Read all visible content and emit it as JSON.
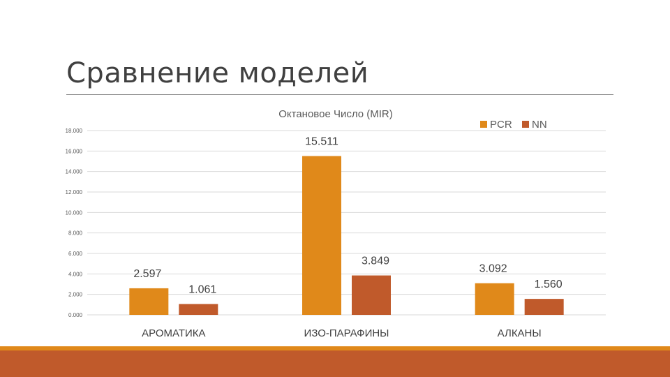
{
  "slide": {
    "title": "Сравнение моделей"
  },
  "colors": {
    "PCR": "#e0891a",
    "NN": "#c05a2b",
    "band_thin": "#e0891a",
    "band_thick": "#c05a2b"
  },
  "chart_data": {
    "type": "bar",
    "title": "Октановое Число (MIR)",
    "xlabel": "",
    "ylabel": "",
    "categories": [
      "АРОМАТИКА",
      "ИЗО-ПАРАФИНЫ",
      "АЛКАНЫ"
    ],
    "series": [
      {
        "name": "PCR",
        "values": [
          2.597,
          15.511,
          3.092
        ],
        "labels": [
          "2.597",
          "15.511",
          "3.092"
        ]
      },
      {
        "name": "NN",
        "values": [
          1.061,
          3.849,
          1.56
        ],
        "labels": [
          "1.061",
          "3.849",
          "1.560"
        ]
      }
    ],
    "ylim": [
      0,
      18
    ],
    "yticks": [
      0,
      2,
      4,
      6,
      8,
      10,
      12,
      14,
      16,
      18
    ],
    "ytick_labels": [
      "0.000",
      "2.000",
      "4.000",
      "6.000",
      "8.000",
      "10.000",
      "12.000",
      "14.000",
      "16.000",
      "18.000"
    ],
    "grid": true,
    "legend_position": "top-right"
  }
}
